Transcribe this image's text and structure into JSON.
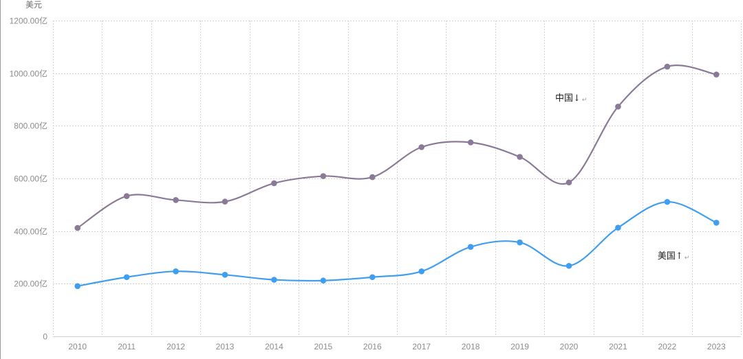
{
  "chart_data": {
    "type": "line",
    "ylabel": "美元",
    "xlabel": "",
    "title": "",
    "categories": [
      "2010",
      "2011",
      "2012",
      "2013",
      "2014",
      "2015",
      "2016",
      "2017",
      "2018",
      "2019",
      "2020",
      "2021",
      "2022",
      "2023"
    ],
    "ylim": [
      0,
      1200
    ],
    "yticks": [
      0,
      200,
      400,
      600,
      800,
      1000,
      1200
    ],
    "ytick_labels": [
      "0",
      "200.00亿",
      "400.00亿",
      "600.00亿",
      "800.00亿",
      "1000.00亿",
      "1200.00亿"
    ],
    "grid": true,
    "series": [
      {
        "values": [
          412,
          533,
          518,
          512,
          582,
          609,
          605,
          719,
          737,
          682,
          585,
          873,
          1025,
          995
        ],
        "color": "#8a7a98"
      },
      {
        "values": [
          191,
          225,
          247,
          234,
          215,
          212,
          225,
          247,
          340,
          357,
          268,
          413,
          511,
          432
        ],
        "color": "#3f9ef0"
      }
    ],
    "annotations": [
      {
        "text": "中国↓",
        "mark": "↵",
        "series_index": 0
      },
      {
        "text": "美国↑",
        "mark": "↵",
        "series_index": 1
      }
    ]
  }
}
